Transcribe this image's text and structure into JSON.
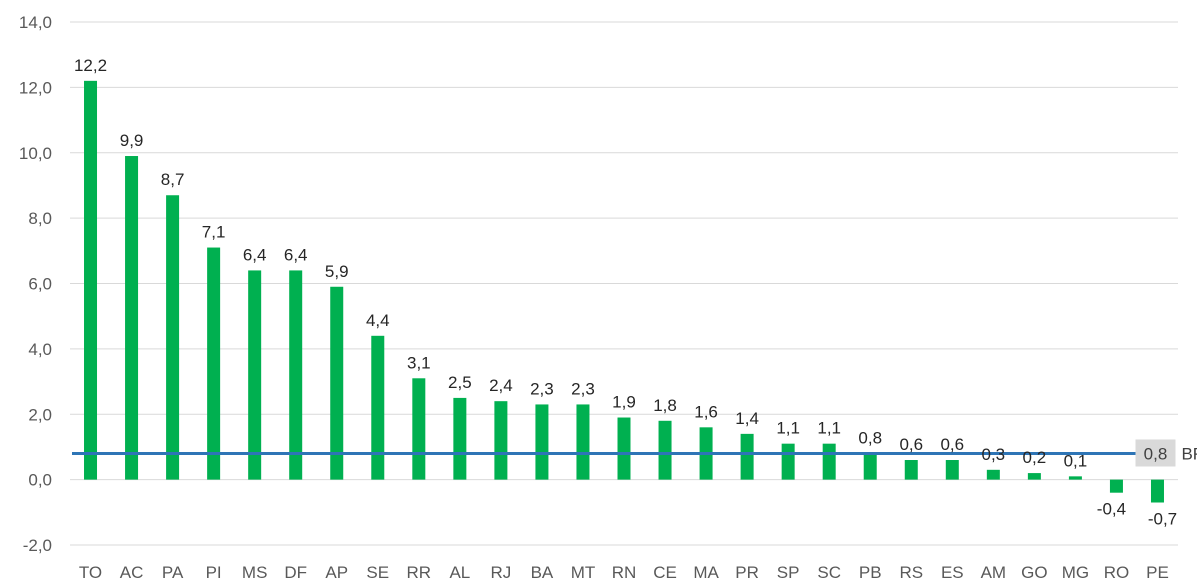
{
  "chart_data": {
    "type": "bar",
    "categories": [
      "TO",
      "AC",
      "PA",
      "PI",
      "MS",
      "DF",
      "AP",
      "SE",
      "RR",
      "AL",
      "RJ",
      "BA",
      "MT",
      "RN",
      "CE",
      "MA",
      "PR",
      "SP",
      "SC",
      "PB",
      "RS",
      "ES",
      "AM",
      "GO",
      "MG",
      "RO",
      "PE"
    ],
    "values": [
      12.2,
      9.9,
      8.7,
      7.1,
      6.4,
      6.4,
      5.9,
      4.4,
      3.1,
      2.5,
      2.4,
      2.3,
      2.3,
      1.9,
      1.8,
      1.6,
      1.4,
      1.1,
      1.1,
      0.8,
      0.6,
      0.6,
      0.3,
      0.2,
      0.1,
      -0.4,
      -0.7
    ],
    "value_labels": [
      "12,2",
      "9,9",
      "8,7",
      "7,1",
      "6,4",
      "6,4",
      "5,9",
      "4,4",
      "3,1",
      "2,5",
      "2,4",
      "2,3",
      "2,3",
      "1,9",
      "1,8",
      "1,6",
      "1,4",
      "1,1",
      "1,1",
      "0,8",
      "0,6",
      "0,6",
      "0,3",
      "0,2",
      "0,1",
      "-0,4",
      "-0,7"
    ],
    "ylim": [
      -2,
      14
    ],
    "yticks": [
      -2,
      0,
      2,
      4,
      6,
      8,
      10,
      12,
      14
    ],
    "ytick_labels": [
      "-2,0",
      "0,0",
      "2,0",
      "4,0",
      "6,0",
      "8,0",
      "10,0",
      "12,0",
      "14,0"
    ],
    "grid": true,
    "reference_line": {
      "value": 0.8,
      "value_label": "0,8",
      "label": "BR"
    },
    "colors": {
      "bar": "#00b050",
      "reference_line": "#2e75b6",
      "grid": "#d9d9d9",
      "ref_label_bg": "#d9d9d9"
    }
  }
}
